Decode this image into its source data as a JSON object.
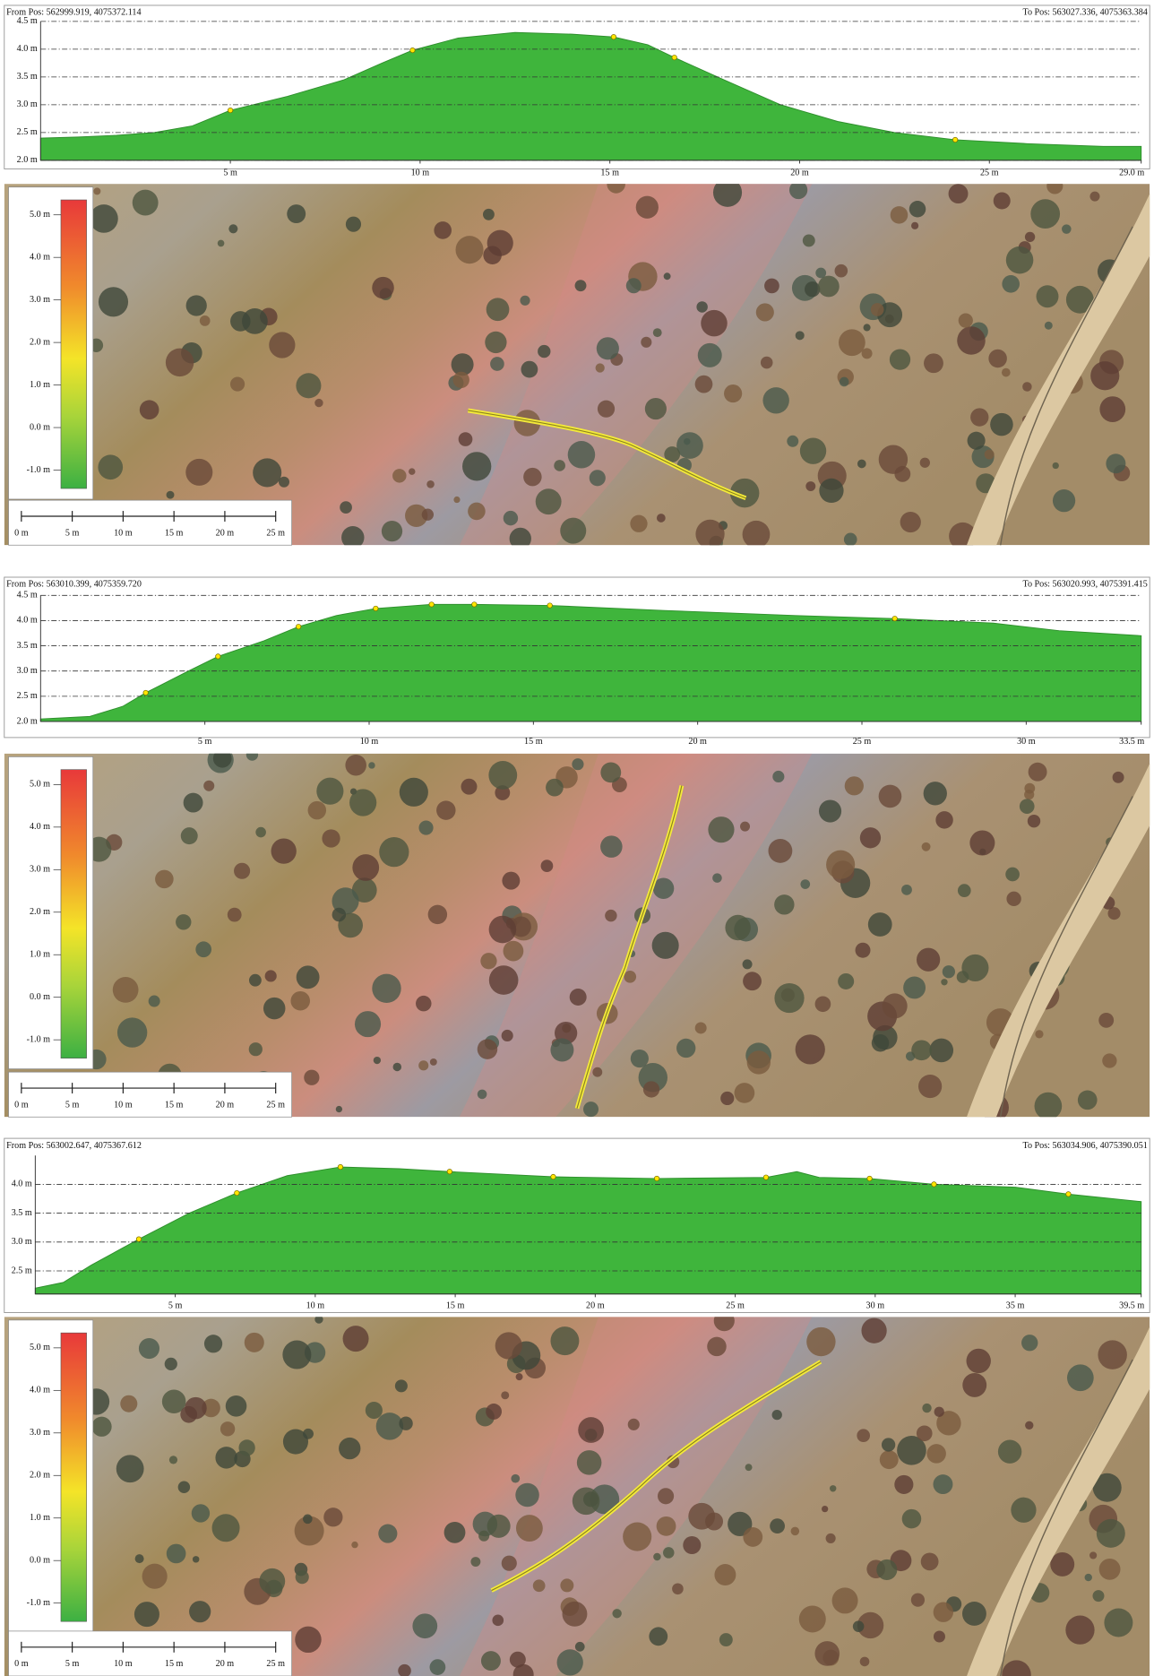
{
  "chart_data": [
    {
      "type": "area",
      "from_pos": "From Pos: 562999.919, 4075372.114",
      "to_pos": "To Pos: 563027.336, 4075363.384",
      "x": [
        0,
        1,
        2,
        3,
        4,
        5,
        6.5,
        8,
        9,
        9.8,
        11,
        12.5,
        14,
        15.1,
        16,
        16.7,
        18,
        19.5,
        21,
        22.5,
        24.1,
        26,
        28,
        29
      ],
      "values": [
        2.4,
        2.42,
        2.45,
        2.5,
        2.62,
        2.9,
        3.15,
        3.45,
        3.75,
        3.98,
        4.2,
        4.3,
        4.27,
        4.22,
        4.08,
        3.85,
        3.45,
        3.0,
        2.7,
        2.5,
        2.37,
        2.3,
        2.25,
        2.25
      ],
      "markers": {
        "x": [
          5,
          9.8,
          15.1,
          16.7,
          24.1
        ],
        "values": [
          2.9,
          3.98,
          4.22,
          3.85,
          2.37
        ],
        "color": "#ffe600"
      },
      "color": "#3fb53c",
      "grid": true,
      "xlim": [
        0,
        29.0
      ],
      "ylim": [
        2.0,
        4.5
      ],
      "xticks": [
        {
          "value": 5,
          "label": "5 m"
        },
        {
          "value": 10,
          "label": "10 m"
        },
        {
          "value": 15,
          "label": "15 m"
        },
        {
          "value": 20,
          "label": "20 m"
        },
        {
          "value": 25,
          "label": "25 m"
        },
        {
          "value": 29.0,
          "label": "29.0 m"
        }
      ],
      "yticks": [
        {
          "value": 2.0,
          "label": "2.0 m"
        },
        {
          "value": 2.5,
          "label": "2.5 m"
        },
        {
          "value": 3.0,
          "label": "3.0 m"
        },
        {
          "value": 3.5,
          "label": "3.5 m"
        },
        {
          "value": 4.0,
          "label": "4.0 m"
        },
        {
          "value": 4.5,
          "label": "4.5 m"
        }
      ]
    },
    {
      "type": "area",
      "from_pos": "From Pos: 563010.399, 4075359.720",
      "to_pos": "To Pos: 563020.993, 4075391.415",
      "x": [
        0,
        1.5,
        2.5,
        3.2,
        4.5,
        5.4,
        6.8,
        7.85,
        9,
        10.2,
        11.9,
        13.2,
        15.5,
        19,
        23,
        26,
        29,
        31,
        33.5
      ],
      "values": [
        2.05,
        2.1,
        2.3,
        2.57,
        3.0,
        3.29,
        3.6,
        3.88,
        4.1,
        4.24,
        4.32,
        4.32,
        4.3,
        4.2,
        4.1,
        4.04,
        3.95,
        3.8,
        3.7
      ],
      "markers": {
        "x": [
          3.2,
          5.4,
          7.85,
          10.2,
          11.9,
          13.2,
          15.5,
          26
        ],
        "values": [
          2.57,
          3.29,
          3.88,
          4.24,
          4.32,
          4.32,
          4.3,
          4.04
        ],
        "color": "#ffe600"
      },
      "color": "#3fb53c",
      "grid": true,
      "xlim": [
        0,
        33.5
      ],
      "ylim": [
        2.0,
        4.5
      ],
      "xticks": [
        {
          "value": 5,
          "label": "5 m"
        },
        {
          "value": 10,
          "label": "10 m"
        },
        {
          "value": 15,
          "label": "15 m"
        },
        {
          "value": 20,
          "label": "20 m"
        },
        {
          "value": 25,
          "label": "25 m"
        },
        {
          "value": 30,
          "label": "30 m"
        },
        {
          "value": 33.5,
          "label": "33.5 m"
        }
      ],
      "yticks": [
        {
          "value": 2.0,
          "label": "2.0 m"
        },
        {
          "value": 2.5,
          "label": "2.5 m"
        },
        {
          "value": 3.0,
          "label": "3.0 m"
        },
        {
          "value": 3.5,
          "label": "3.5 m"
        },
        {
          "value": 4.0,
          "label": "4.0 m"
        },
        {
          "value": 4.5,
          "label": "4.5 m"
        }
      ]
    },
    {
      "type": "area",
      "from_pos": "From Pos: 563002.647, 4075367.612",
      "to_pos": "To Pos: 563034.906, 4075390.051",
      "x": [
        0,
        1,
        2,
        3.7,
        5.5,
        7.2,
        9,
        10.9,
        13,
        14.8,
        18.5,
        22.2,
        26.1,
        27.2,
        28,
        29.8,
        32.1,
        35,
        36.9,
        39.5
      ],
      "values": [
        2.2,
        2.3,
        2.6,
        3.05,
        3.5,
        3.85,
        4.15,
        4.3,
        4.27,
        4.22,
        4.13,
        4.1,
        4.12,
        4.22,
        4.12,
        4.1,
        4.0,
        3.95,
        3.83,
        3.7
      ],
      "markers": {
        "x": [
          3.7,
          7.2,
          10.9,
          14.8,
          18.5,
          22.2,
          26.1,
          29.8,
          32.1,
          36.9
        ],
        "values": [
          3.05,
          3.85,
          4.3,
          4.22,
          4.13,
          4.1,
          4.12,
          4.1,
          4.0,
          3.83
        ],
        "color": "#ffe600"
      },
      "color": "#3fb53c",
      "grid": true,
      "xlim": [
        0,
        39.5
      ],
      "ylim": [
        2.1,
        4.5
      ],
      "xticks": [
        {
          "value": 5,
          "label": "5 m"
        },
        {
          "value": 10,
          "label": "10 m"
        },
        {
          "value": 15,
          "label": "15 m"
        },
        {
          "value": 20,
          "label": "20 m"
        },
        {
          "value": 25,
          "label": "25 m"
        },
        {
          "value": 30,
          "label": "30 m"
        },
        {
          "value": 35,
          "label": "35 m"
        },
        {
          "value": 39.5,
          "label": "39.5 m"
        }
      ],
      "yticks": [
        {
          "value": 2.5,
          "label": "2.5 m"
        },
        {
          "value": 3.0,
          "label": "3.0 m"
        },
        {
          "value": 3.5,
          "label": "3.5 m"
        },
        {
          "value": 4.0,
          "label": "4.0 m"
        }
      ]
    }
  ],
  "maps": [
    {
      "legend_labels": [
        "5.0 m",
        "4.0 m",
        "3.0 m",
        "2.0 m",
        "1.0 m",
        "0.0 m",
        "-1.0 m"
      ],
      "scale_labels": [
        "0 m",
        "5 m",
        "10 m",
        "15 m",
        "20 m",
        "25 m"
      ]
    },
    {
      "legend_labels": [
        "5.0 m",
        "4.0 m",
        "3.0 m",
        "2.0 m",
        "1.0 m",
        "0.0 m",
        "-1.0 m"
      ],
      "scale_labels": [
        "0 m",
        "5 m",
        "10 m",
        "15 m",
        "20 m",
        "25 m"
      ]
    },
    {
      "legend_labels": [
        "5.0 m",
        "4.0 m",
        "3.0 m",
        "2.0 m",
        "1.0 m",
        "0.0 m",
        "-1.0 m"
      ],
      "scale_labels": [
        "0 m",
        "5 m",
        "10 m",
        "15 m",
        "20 m",
        "25 m"
      ]
    }
  ]
}
